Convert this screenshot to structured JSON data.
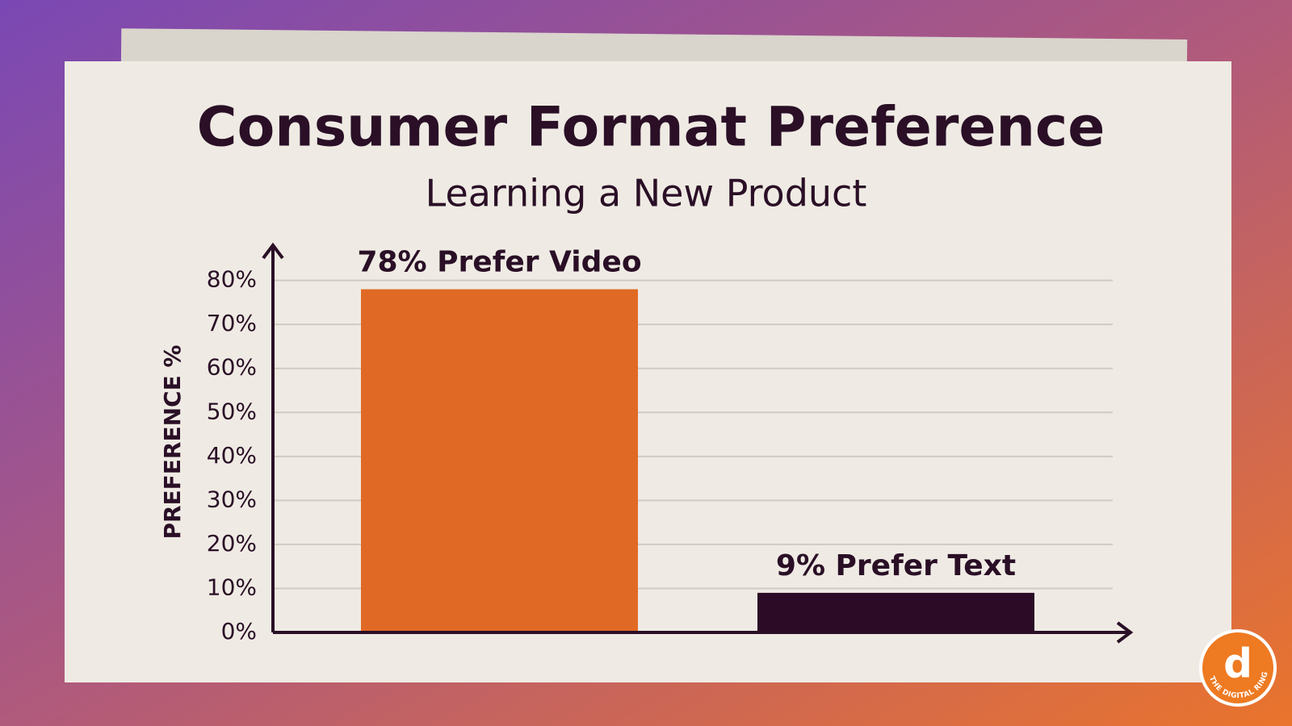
{
  "chart_data": {
    "type": "bar",
    "title": "Consumer Format Preference",
    "subtitle": "Learning a New Product",
    "y_label": "PREFERENCE %",
    "categories": [
      null,
      null
    ],
    "values": [
      78,
      9
    ],
    "value_labels": [
      "78% Prefer Video",
      "9% Prefer Text"
    ],
    "colors": [
      "#e06a25",
      "#2b0b25"
    ],
    "ylim": [
      0,
      88
    ],
    "yticks": [
      {
        "value": 0,
        "label": "0%"
      },
      {
        "value": 10,
        "label": "10%"
      },
      {
        "value": 20,
        "label": "20%"
      },
      {
        "value": 30,
        "label": "30%"
      },
      {
        "value": 40,
        "label": "40%"
      },
      {
        "value": 50,
        "label": "50%"
      },
      {
        "value": 60,
        "label": "60%"
      },
      {
        "value": 70,
        "label": "70%"
      },
      {
        "value": 80,
        "label": "80%"
      }
    ],
    "grid": true
  },
  "watermark": "THE DIGITAL RING"
}
